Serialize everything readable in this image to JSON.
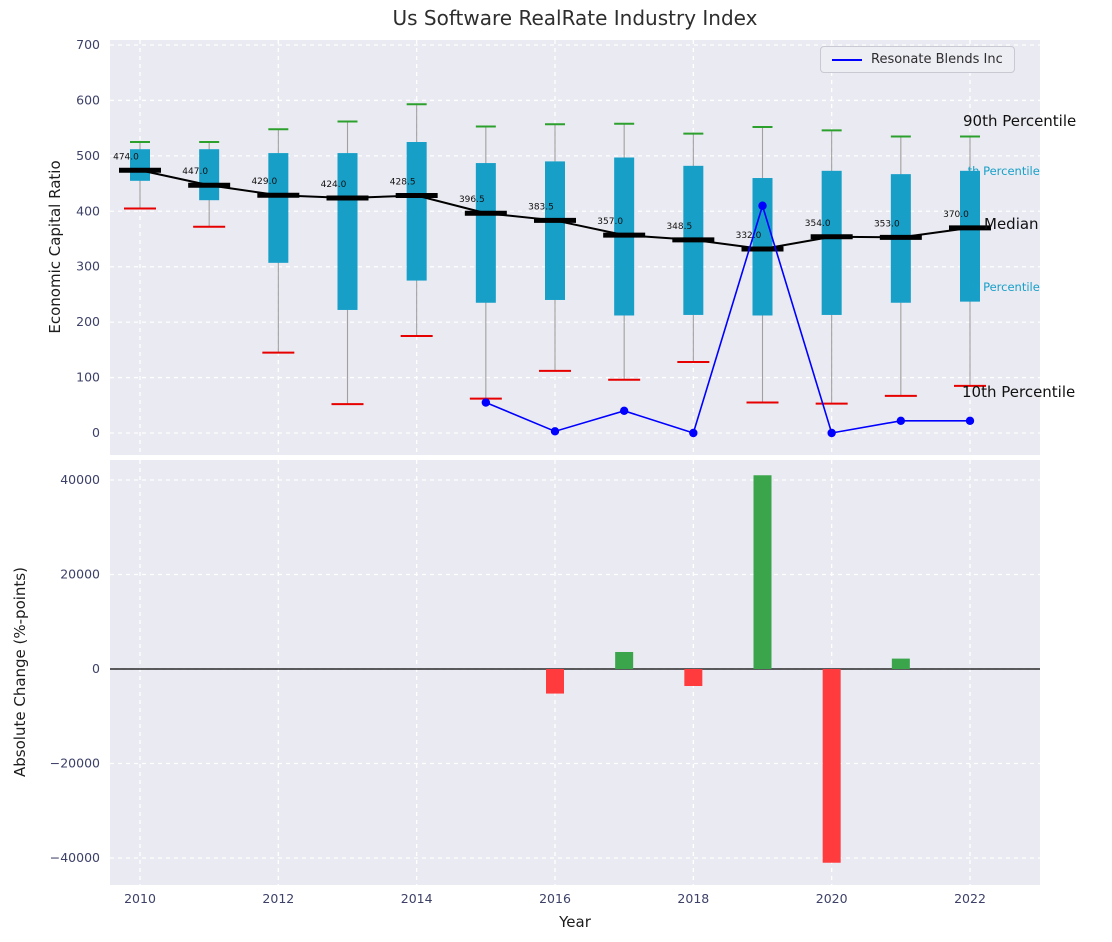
{
  "title": "Us Software RealRate Industry Index",
  "legend": {
    "label": "Resonate Blends Inc"
  },
  "axes": {
    "top_ylabel": "Economic Capital Ratio",
    "bottom_ylabel": "Absolute Change (%-points)",
    "xlabel": "Year"
  },
  "annotations": {
    "p90": "90th Percentile",
    "p75": "75th Percentile",
    "median": "Median",
    "p25": "25th Percentile",
    "p10": "10th Percentile"
  },
  "colors": {
    "panel_bg": "#eaeaf2",
    "grid": "#ffffff",
    "box": "#179fc8",
    "median": "#000000",
    "company": "#0000ff",
    "whisker": "#a0a0a0",
    "cap_high": "#2ca02c",
    "cap_low": "#e60000",
    "bar_pos": "#3aa54a",
    "bar_neg": "#ff3b3e",
    "tick": "#3d4168",
    "label": "#111111"
  },
  "chart_data": [
    {
      "type": "box",
      "title": "Us Software RealRate Industry Index",
      "ylabel": "Economic Capital Ratio",
      "ylim": [
        0,
        700
      ],
      "yticks": [
        0,
        100,
        200,
        300,
        400,
        500,
        600,
        700
      ],
      "ytick_labels": [
        "0",
        "100",
        "200",
        "300",
        "400",
        "500",
        "600",
        "700"
      ],
      "xticks": [
        2010,
        2012,
        2014,
        2016,
        2018,
        2020,
        2022
      ],
      "xtick_labels": [
        "2010",
        "2012",
        "2014",
        "2016",
        "2018",
        "2020",
        "2022"
      ],
      "years": [
        2010,
        2011,
        2012,
        2013,
        2014,
        2015,
        2016,
        2017,
        2018,
        2019,
        2020,
        2021,
        2022
      ],
      "boxes": [
        {
          "year": 2010,
          "p10": 405,
          "p25": 455,
          "median": 474.0,
          "p75": 512,
          "p90": 525
        },
        {
          "year": 2011,
          "p10": 372,
          "p25": 420,
          "median": 447.0,
          "p75": 512,
          "p90": 525
        },
        {
          "year": 2012,
          "p10": 145,
          "p25": 307,
          "median": 429.0,
          "p75": 505,
          "p90": 548
        },
        {
          "year": 2013,
          "p10": 52,
          "p25": 222,
          "median": 424.0,
          "p75": 505,
          "p90": 562
        },
        {
          "year": 2014,
          "p10": 175,
          "p25": 275,
          "median": 428.5,
          "p75": 525,
          "p90": 593
        },
        {
          "year": 2015,
          "p10": 62,
          "p25": 235,
          "median": 396.5,
          "p75": 487,
          "p90": 553
        },
        {
          "year": 2016,
          "p10": 112,
          "p25": 240,
          "median": 383.5,
          "p75": 490,
          "p90": 557
        },
        {
          "year": 2017,
          "p10": 96,
          "p25": 212,
          "median": 357.0,
          "p75": 497,
          "p90": 558
        },
        {
          "year": 2018,
          "p10": 128,
          "p25": 213,
          "median": 348.5,
          "p75": 482,
          "p90": 540
        },
        {
          "year": 2019,
          "p10": 55,
          "p25": 212,
          "median": 332.0,
          "p75": 460,
          "p90": 552
        },
        {
          "year": 2020,
          "p10": 53,
          "p25": 213,
          "median": 354.0,
          "p75": 473,
          "p90": 546
        },
        {
          "year": 2021,
          "p10": 67,
          "p25": 235,
          "median": 353.0,
          "p75": 467,
          "p90": 535
        },
        {
          "year": 2022,
          "p10": 85,
          "p25": 237,
          "median": 370.0,
          "p75": 473,
          "p90": 535
        }
      ],
      "median_labels": [
        "474.0",
        "447.0",
        "429.0",
        "424.0",
        "428.5",
        "396.5",
        "383.5",
        "357.0",
        "348.5",
        "332.0",
        "354.0",
        "353.0",
        "370.0"
      ],
      "company": {
        "name": "Resonate Blends Inc",
        "x": [
          2015,
          2016,
          2017,
          2018,
          2019,
          2020,
          2021,
          2022
        ],
        "values": [
          55,
          3,
          40,
          0,
          410,
          0,
          22,
          22
        ]
      },
      "legend_position": "upper right",
      "grid": true
    },
    {
      "type": "bar",
      "ylabel": "Absolute Change (%-points)",
      "xlabel": "Year",
      "ylim": [
        -45000,
        45000
      ],
      "yticks": [
        -40000,
        -20000,
        0,
        20000,
        40000
      ],
      "ytick_labels": [
        "−40000",
        "−20000",
        "0",
        "20000",
        "40000"
      ],
      "xticks": [
        2010,
        2012,
        2014,
        2016,
        2018,
        2020,
        2022
      ],
      "xtick_labels": [
        "2010",
        "2012",
        "2014",
        "2016",
        "2018",
        "2020",
        "2022"
      ],
      "bars": [
        {
          "year": 2016,
          "value": -5200
        },
        {
          "year": 2017,
          "value": 3600
        },
        {
          "year": 2018,
          "value": -3600
        },
        {
          "year": 2019,
          "value": 41000
        },
        {
          "year": 2020,
          "value": -41000
        },
        {
          "year": 2021,
          "value": 2200
        }
      ],
      "grid": true
    }
  ]
}
